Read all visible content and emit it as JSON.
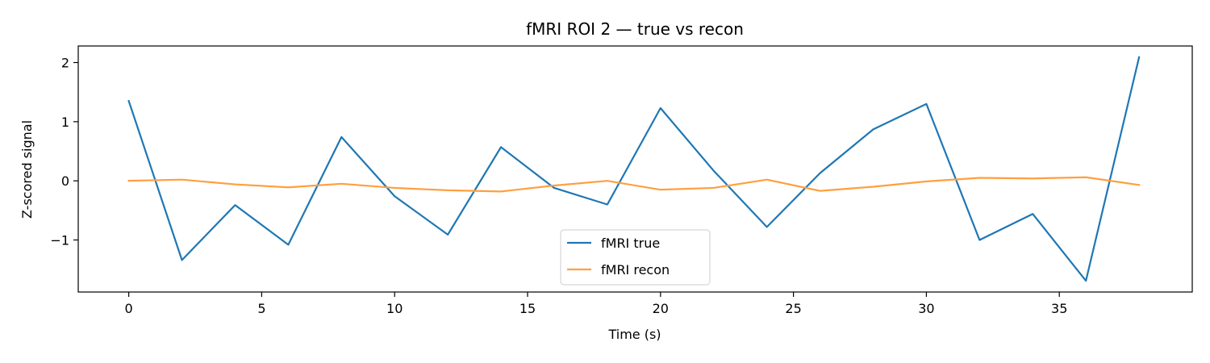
{
  "chart_data": {
    "type": "line",
    "title": "fMRI ROI 2 — true vs recon",
    "xlabel": "Time (s)",
    "ylabel": "Z-scored signal",
    "xlim": [
      -1.9,
      40.0
    ],
    "ylim": [
      -1.88,
      2.28
    ],
    "xticks": [
      0,
      5,
      10,
      15,
      20,
      25,
      30,
      35
    ],
    "xtick_labels": [
      "0",
      "5",
      "10",
      "15",
      "20",
      "25",
      "30",
      "35"
    ],
    "yticks": [
      -1,
      0,
      1,
      2
    ],
    "ytick_labels": [
      "−1",
      "0",
      "1",
      "2"
    ],
    "grid": false,
    "legend_position": "lower-center",
    "x": [
      0,
      2,
      4,
      6,
      8,
      10,
      12,
      14,
      16,
      18,
      20,
      22,
      24,
      26,
      28,
      30,
      32,
      34,
      36,
      38
    ],
    "series": [
      {
        "name": "fMRI true",
        "color": "#1f77b4",
        "values": [
          1.35,
          -1.34,
          -0.41,
          -1.08,
          0.74,
          -0.26,
          -0.91,
          0.57,
          -0.12,
          -0.4,
          1.23,
          0.17,
          -0.78,
          0.13,
          0.87,
          1.3,
          -1.0,
          -0.56,
          -1.69,
          2.09
        ]
      },
      {
        "name": "fMRI recon",
        "color": "#ff9f40",
        "values": [
          0.0,
          0.02,
          -0.06,
          -0.11,
          -0.05,
          -0.12,
          -0.16,
          -0.18,
          -0.08,
          0.0,
          -0.15,
          -0.12,
          0.02,
          -0.17,
          -0.1,
          -0.01,
          0.05,
          0.04,
          0.06,
          -0.07
        ]
      }
    ]
  }
}
